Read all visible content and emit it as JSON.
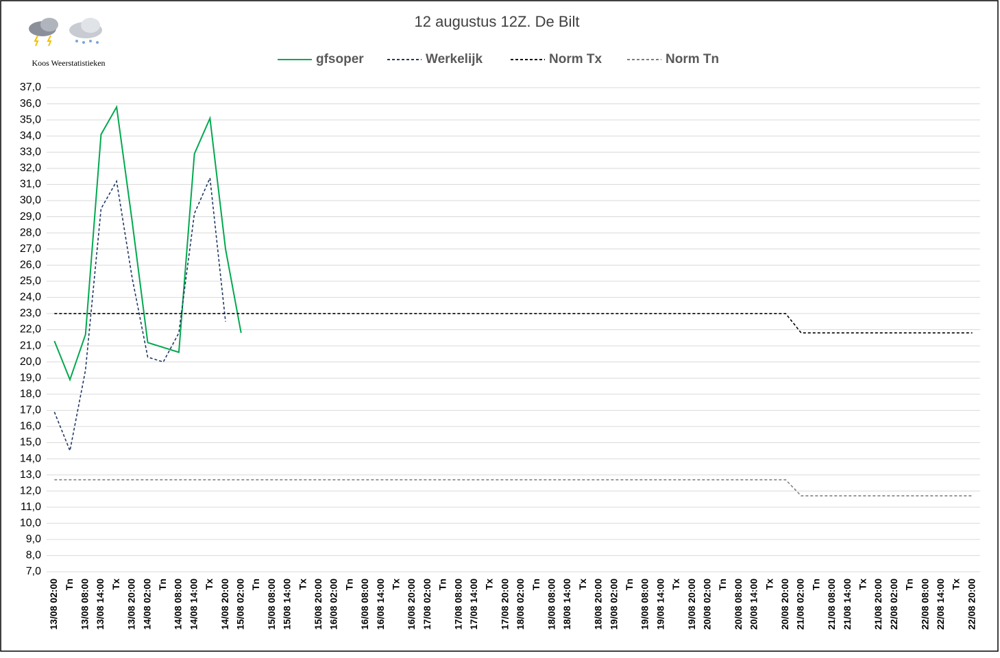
{
  "chart_data": {
    "type": "line",
    "title": "12 augustus 12Z. De Bilt",
    "logo_text": "Koos Weerstatistieken",
    "categories": [
      "13/08 02:00",
      "Tn",
      "13/08 08:00",
      "13/08 14:00",
      "Tx",
      "13/08 20:00",
      "14/08 02:00",
      "Tn",
      "14/08 08:00",
      "14/08 14:00",
      "Tx",
      "14/08 20:00",
      "15/08 02:00",
      "Tn",
      "15/08 08:00",
      "15/08 14:00",
      "Tx",
      "15/08 20:00",
      "16/08 02:00",
      "Tn",
      "16/08 08:00",
      "16/08 14:00",
      "Tx",
      "16/08 20:00",
      "17/08 02:00",
      "Tn",
      "17/08 08:00",
      "17/08 14:00",
      "Tx",
      "17/08 20:00",
      "18/08 02:00",
      "Tn",
      "18/08 08:00",
      "18/08 14:00",
      "Tx",
      "18/08 20:00",
      "19/08 02:00",
      "Tn",
      "19/08 08:00",
      "19/08 14:00",
      "Tx",
      "19/08 20:00",
      "20/08 02:00",
      "Tn",
      "20/08 08:00",
      "20/08 14:00",
      "Tx",
      "20/08 20:00",
      "21/08 02:00",
      "Tn",
      "21/08 08:00",
      "21/08 14:00",
      "Tx",
      "21/08 20:00",
      "22/08 02:00",
      "Tn",
      "22/08 08:00",
      "22/08 14:00",
      "Tx",
      "22/08 20:00"
    ],
    "series": [
      {
        "name": "gfsoper",
        "color": "#00a84f",
        "dashed": false,
        "values": [
          21.3,
          18.9,
          21.7,
          34.1,
          35.8,
          28.7,
          21.2,
          20.9,
          20.6,
          32.9,
          35.1,
          27.0,
          21.8,
          null,
          null,
          null,
          null,
          null,
          null,
          null,
          null,
          null,
          null,
          null,
          null,
          null,
          null,
          null,
          null,
          null,
          null,
          null,
          null,
          null,
          null,
          null,
          null,
          null,
          null,
          null,
          null,
          null,
          null,
          null,
          null,
          null,
          null,
          null,
          null,
          null,
          null,
          null,
          null,
          null,
          null,
          null,
          null,
          null,
          null,
          null
        ]
      },
      {
        "name": "Werkelijk",
        "color": "#203864",
        "dashed": true,
        "values": [
          16.9,
          14.5,
          19.5,
          29.5,
          31.2,
          25.2,
          20.3,
          20.0,
          21.8,
          29.2,
          31.4,
          22.5,
          null,
          null,
          null,
          null,
          null,
          null,
          null,
          null,
          null,
          null,
          null,
          null,
          null,
          null,
          null,
          null,
          null,
          null,
          null,
          null,
          null,
          null,
          null,
          null,
          null,
          null,
          null,
          null,
          null,
          null,
          null,
          null,
          null,
          null,
          null,
          null,
          null,
          null,
          null,
          null,
          null,
          null,
          null,
          null,
          null,
          null,
          null,
          null
        ]
      },
      {
        "name": "Norm Tx",
        "color": "#000000",
        "dashed": true,
        "values": [
          23,
          23,
          23,
          23,
          23,
          23,
          23,
          23,
          23,
          23,
          23,
          23,
          23,
          23,
          23,
          23,
          23,
          23,
          23,
          23,
          23,
          23,
          23,
          23,
          23,
          23,
          23,
          23,
          23,
          23,
          23,
          23,
          23,
          23,
          23,
          23,
          23,
          23,
          23,
          23,
          23,
          23,
          23,
          23,
          23,
          23,
          23,
          23,
          21.8,
          21.8,
          21.8,
          21.8,
          21.8,
          21.8,
          21.8,
          21.8,
          21.8,
          21.8,
          21.8,
          21.8
        ]
      },
      {
        "name": "Norm Tn",
        "color": "#7f7f7f",
        "dashed": true,
        "values": [
          12.7,
          12.7,
          12.7,
          12.7,
          12.7,
          12.7,
          12.7,
          12.7,
          12.7,
          12.7,
          12.7,
          12.7,
          12.7,
          12.7,
          12.7,
          12.7,
          12.7,
          12.7,
          12.7,
          12.7,
          12.7,
          12.7,
          12.7,
          12.7,
          12.7,
          12.7,
          12.7,
          12.7,
          12.7,
          12.7,
          12.7,
          12.7,
          12.7,
          12.7,
          12.7,
          12.7,
          12.7,
          12.7,
          12.7,
          12.7,
          12.7,
          12.7,
          12.7,
          12.7,
          12.7,
          12.7,
          12.7,
          12.7,
          11.7,
          11.7,
          11.7,
          11.7,
          11.7,
          11.7,
          11.7,
          11.7,
          11.7,
          11.7,
          11.7,
          11.7
        ]
      }
    ],
    "ylim": [
      7,
      37
    ],
    "yticks": [
      {
        "value": 7,
        "label": "7,0"
      },
      {
        "value": 8,
        "label": "8,0"
      },
      {
        "value": 9,
        "label": "9,0"
      },
      {
        "value": 10,
        "label": "10,0"
      },
      {
        "value": 11,
        "label": "11,0"
      },
      {
        "value": 12,
        "label": "12,0"
      },
      {
        "value": 13,
        "label": "13,0"
      },
      {
        "value": 14,
        "label": "14,0"
      },
      {
        "value": 15,
        "label": "15,0"
      },
      {
        "value": 16,
        "label": "16,0"
      },
      {
        "value": 17,
        "label": "17,0"
      },
      {
        "value": 18,
        "label": "18,0"
      },
      {
        "value": 19,
        "label": "19,0"
      },
      {
        "value": 20,
        "label": "20,0"
      },
      {
        "value": 21,
        "label": "21,0"
      },
      {
        "value": 22,
        "label": "22,0"
      },
      {
        "value": 23,
        "label": "23,0"
      },
      {
        "value": 24,
        "label": "24,0"
      },
      {
        "value": 25,
        "label": "25,0"
      },
      {
        "value": 26,
        "label": "26,0"
      },
      {
        "value": 27,
        "label": "27,0"
      },
      {
        "value": 28,
        "label": "28,0"
      },
      {
        "value": 29,
        "label": "29,0"
      },
      {
        "value": 30,
        "label": "30,0"
      },
      {
        "value": 31,
        "label": "31,0"
      },
      {
        "value": 32,
        "label": "32,0"
      },
      {
        "value": 33,
        "label": "33,0"
      },
      {
        "value": 34,
        "label": "34,0"
      },
      {
        "value": 35,
        "label": "35,0"
      },
      {
        "value": 36,
        "label": "36,0"
      },
      {
        "value": 37,
        "label": "37,0"
      }
    ],
    "grid": true
  }
}
